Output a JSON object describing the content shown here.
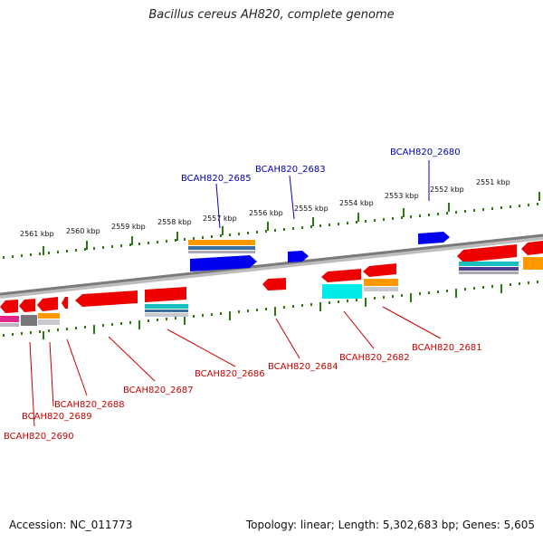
{
  "title": "Bacillus cereus AH820, complete genome",
  "accession_label": "Accession: NC_011773",
  "topology_label": "Topology: linear; Length: 5,302,683 bp; Genes: 5,605",
  "colors": {
    "forward_label": "#0000bb",
    "reverse_label": "#cc0000",
    "tick": "#2a7a10",
    "backbone": "#888888",
    "gene_red": "#ee0000",
    "gene_blue": "#0000ee"
  },
  "kbp_labels": [
    "2561 kbp",
    "2560 kbp",
    "2559 kbp",
    "2558 kbp",
    "2557 kbp",
    "2556 kbp",
    "2555 kbp",
    "2554 kbp",
    "2553 kbp",
    "2552 kbp",
    "2551 kbp"
  ],
  "forward_genes": [
    "BCAH820_2685",
    "BCAH820_2683",
    "BCAH820_2680"
  ],
  "reverse_genes": [
    "BCAH820_2690",
    "BCAH820_2689",
    "BCAH820_2688",
    "BCAH820_2687",
    "BCAH820_2686",
    "BCAH820_2684",
    "BCAH820_2682",
    "BCAH820_2681"
  ]
}
